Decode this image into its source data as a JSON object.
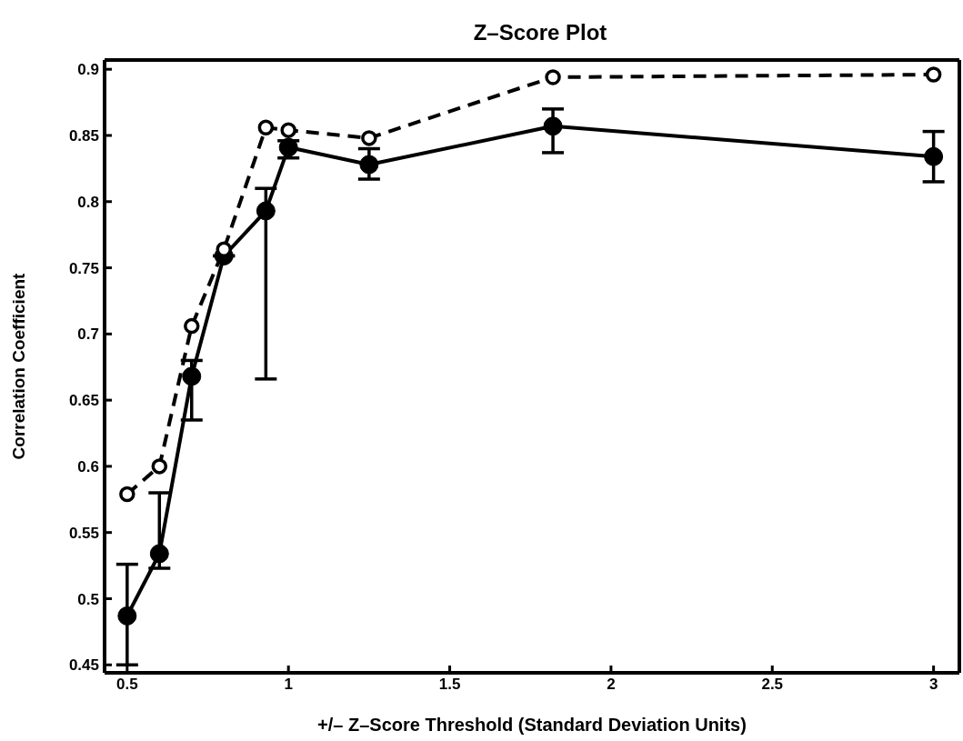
{
  "chart_data": {
    "type": "line",
    "title": "Z–Score Plot",
    "xlabel": "+/– Z–Score Threshold (Standard Deviation Units)",
    "ylabel": "Correlation Coefficient",
    "x": [
      0.5,
      0.6,
      0.7,
      0.8,
      0.93,
      1.0,
      1.25,
      1.82,
      3.0
    ],
    "xlim": [
      0.43,
      3.08
    ],
    "xticks": [
      0.5,
      1,
      1.5,
      2,
      2.5,
      3
    ],
    "ylim": [
      0.444,
      0.907
    ],
    "yticks": [
      0.45,
      0.5,
      0.55,
      0.6,
      0.65,
      0.7,
      0.75,
      0.8,
      0.85,
      0.9
    ],
    "grid": false,
    "legend": false,
    "marker": "circle",
    "series": [
      {
        "color": "#000000",
        "line_style": "solid",
        "values": [
          0.487,
          0.534,
          0.668,
          0.759,
          0.793,
          0.841,
          0.828,
          0.857,
          0.834
        ],
        "errors": [
          [
            0.45,
            0.526
          ],
          [
            0.523,
            0.58
          ],
          [
            0.635,
            0.68
          ],
          null,
          [
            0.666,
            0.81
          ],
          [
            0.833,
            0.846
          ],
          [
            0.817,
            0.84
          ],
          [
            0.837,
            0.87
          ],
          [
            0.815,
            0.853
          ]
        ]
      },
      {
        "color": "#000000",
        "line_style": "dashed",
        "values": [
          0.579,
          0.6,
          0.706,
          0.764,
          0.856,
          0.854,
          0.848,
          0.894,
          0.896
        ]
      }
    ]
  }
}
